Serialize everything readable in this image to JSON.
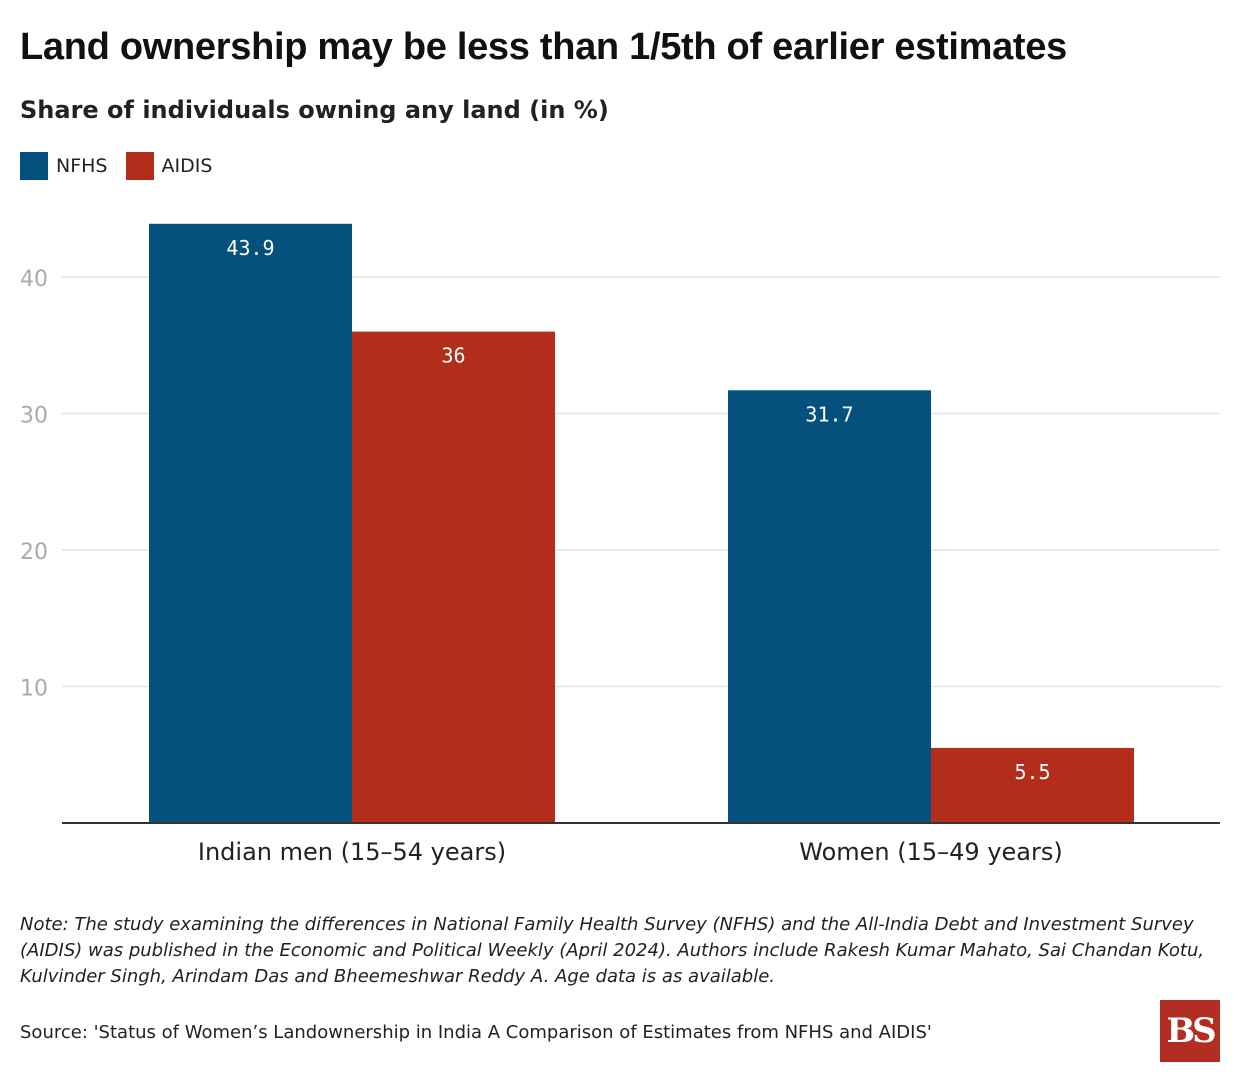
{
  "header": {
    "title": "Land ownership may be less than 1/5th of earlier estimates",
    "subtitle": "Share of individuals owning any land (in %)"
  },
  "legend": [
    {
      "label": "NFHS",
      "color": "#05507d"
    },
    {
      "label": "AIDIS",
      "color": "#b22d1a"
    }
  ],
  "chart_data": {
    "type": "bar",
    "categories": [
      "Indian men (15–54 years)",
      "Women (15–49 years)"
    ],
    "series": [
      {
        "name": "NFHS",
        "values": [
          43.9,
          31.7
        ],
        "labels": [
          "43.9",
          "31.7"
        ],
        "color": "#05507d"
      },
      {
        "name": "AIDIS",
        "values": [
          36,
          5.5
        ],
        "labels": [
          "36",
          "5.5"
        ],
        "color": "#b22d1a"
      }
    ],
    "yticks": [
      "10",
      "20",
      "30",
      "40"
    ],
    "ylim": [
      0,
      45
    ],
    "grid": true,
    "legend_position": "top-left"
  },
  "footer": {
    "note": "Note: The study examining the differences in National Family Health Survey (NFHS) and the All-India Debt and Investment Survey (AIDIS) was published in the Economic and Political Weekly (April 2024). Authors include Rakesh Kumar Mahato, Sai Chandan Kotu, Kulvinder Singh, Arindam Das and Bheemeshwar Reddy A. Age data is as available.",
    "source": "Source: 'Status of Women’s Landownership in India A Comparison of Estimates from NFHS and AIDIS'",
    "logo_text": "BS",
    "logo_color": "#b22d22"
  }
}
